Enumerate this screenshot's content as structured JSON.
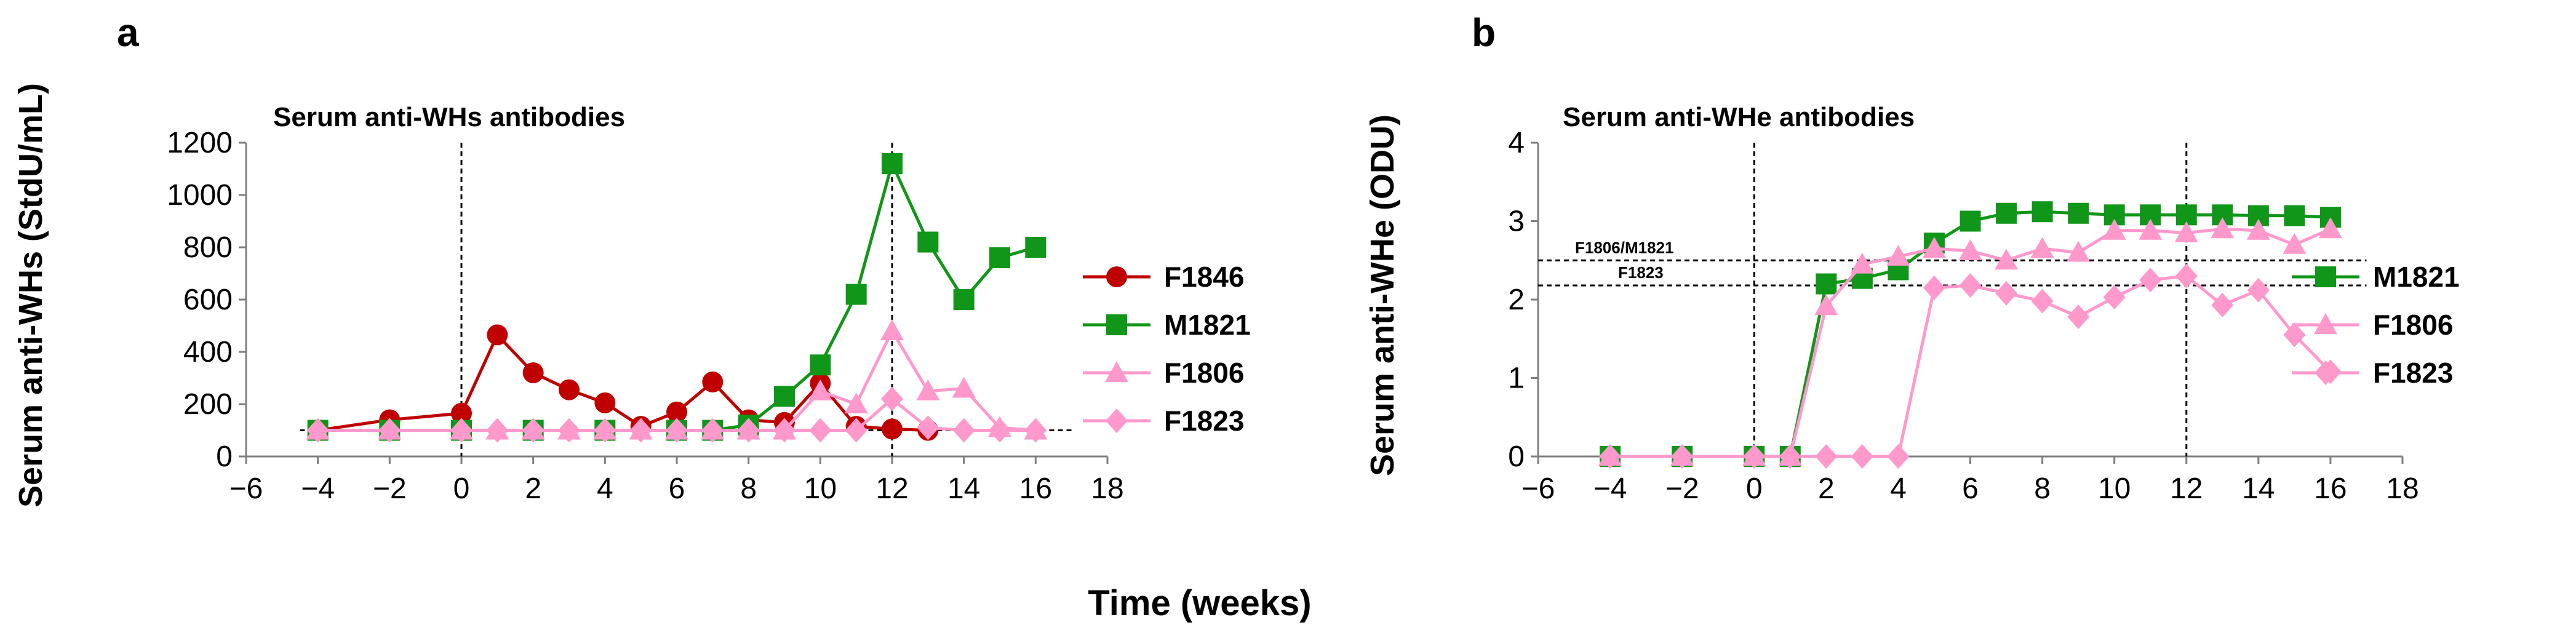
{
  "panels": [
    "a",
    "b"
  ],
  "shared_xlabel": "Time (weeks)",
  "chart_data": [
    {
      "type": "line",
      "panel": "a",
      "title": "Serum anti-WHs antibodies",
      "xlabel": "",
      "ylabel": "Serum anti-WHs (StdU/mL)",
      "xlim": [
        -6,
        18
      ],
      "ylim": [
        0,
        1200
      ],
      "xticks": [
        -6,
        -4,
        -2,
        0,
        2,
        4,
        6,
        8,
        10,
        12,
        14,
        16,
        18
      ],
      "xtick_labels": [
        "−6",
        "−4",
        "−2",
        "0",
        "2",
        "4",
        "6",
        "8",
        "10",
        "12",
        "14",
        "16",
        "18"
      ],
      "yticks": [
        0,
        200,
        400,
        600,
        800,
        1000,
        1200
      ],
      "ytick_labels": [
        "0",
        "200",
        "400",
        "600",
        "800",
        "1000",
        "1200"
      ],
      "grid": false,
      "legend_position": "right",
      "vlines": [
        0,
        12
      ],
      "hlines": [
        {
          "y": 100,
          "x_from": -4.5,
          "x_to": 17
        }
      ],
      "series": [
        {
          "name": "F1846",
          "color": "#c00000",
          "marker": "circle",
          "x": [
            -4,
            -2,
            0,
            1,
            2,
            3,
            4,
            5,
            6,
            7,
            8,
            9,
            10,
            11,
            12,
            13
          ],
          "y": [
            100,
            140,
            165,
            465,
            320,
            255,
            205,
            115,
            170,
            285,
            140,
            130,
            280,
            115,
            105,
            100
          ]
        },
        {
          "name": "M1821",
          "color": "#109618",
          "marker": "square",
          "x": [
            -4,
            -2,
            0,
            2,
            4,
            6,
            7,
            8,
            9,
            10,
            11,
            12,
            13,
            14,
            15,
            16
          ],
          "y": [
            100,
            100,
            100,
            100,
            100,
            100,
            100,
            120,
            230,
            350,
            620,
            1120,
            820,
            600,
            760,
            800
          ]
        },
        {
          "name": "F1806",
          "color": "#ff99cc",
          "marker": "triangle",
          "x": [
            -4,
            -2,
            0,
            1,
            2,
            3,
            4,
            5,
            6,
            7,
            8,
            9,
            10,
            11,
            12,
            13,
            14,
            15,
            16
          ],
          "y": [
            100,
            100,
            100,
            100,
            100,
            100,
            100,
            100,
            100,
            100,
            100,
            100,
            250,
            200,
            480,
            250,
            260,
            110,
            100
          ]
        },
        {
          "name": "F1823",
          "color": "#ff99cc",
          "marker": "diamond",
          "x": [
            -4,
            -2,
            0,
            1,
            2,
            3,
            4,
            5,
            6,
            7,
            8,
            9,
            10,
            11,
            12,
            13,
            14,
            15,
            16
          ],
          "y": [
            100,
            100,
            100,
            100,
            100,
            100,
            100,
            100,
            100,
            100,
            100,
            100,
            100,
            100,
            220,
            110,
            100,
            100,
            100
          ]
        }
      ]
    },
    {
      "type": "line",
      "panel": "b",
      "title": "Serum anti-WHe antibodies",
      "xlabel": "",
      "ylabel": "Serum anti-WHe (ODU)",
      "xlim": [
        -6,
        18
      ],
      "ylim": [
        0,
        4
      ],
      "xticks": [
        -6,
        -4,
        -2,
        0,
        2,
        4,
        6,
        8,
        10,
        12,
        14,
        16,
        18
      ],
      "xtick_labels": [
        "−6",
        "−4",
        "−2",
        "0",
        "2",
        "4",
        "6",
        "8",
        "10",
        "12",
        "14",
        "16",
        "18"
      ],
      "yticks": [
        0,
        1,
        2,
        3,
        4
      ],
      "ytick_labels": [
        "0",
        "1",
        "2",
        "3",
        "4"
      ],
      "grid": false,
      "legend_position": "right",
      "vlines": [
        0,
        12
      ],
      "hlines": [
        {
          "y": 2.5,
          "x_from": -6,
          "x_to": 17,
          "label": "F1806/M1821"
        },
        {
          "y": 2.18,
          "x_from": -6,
          "x_to": 17,
          "label": "F1823"
        }
      ],
      "series": [
        {
          "name": "M1821",
          "color": "#109618",
          "marker": "square",
          "x": [
            -4,
            -2,
            0,
            1,
            2,
            3,
            4,
            5,
            6,
            7,
            8,
            9,
            10,
            11,
            12,
            13,
            14,
            15,
            16
          ],
          "y": [
            0,
            0,
            0,
            0,
            2.2,
            2.27,
            2.38,
            2.72,
            3.0,
            3.1,
            3.12,
            3.1,
            3.08,
            3.08,
            3.08,
            3.08,
            3.07,
            3.07,
            3.05
          ]
        },
        {
          "name": "F1806",
          "color": "#ff99cc",
          "marker": "triangle",
          "x": [
            -4,
            -2,
            0,
            1,
            2,
            3,
            4,
            5,
            6,
            7,
            8,
            9,
            10,
            11,
            12,
            13,
            14,
            15,
            16
          ],
          "y": [
            0,
            0,
            0,
            0,
            1.92,
            2.45,
            2.55,
            2.65,
            2.62,
            2.5,
            2.65,
            2.6,
            2.88,
            2.88,
            2.85,
            2.9,
            2.88,
            2.7,
            2.9
          ]
        },
        {
          "name": "F1823",
          "color": "#ff99cc",
          "marker": "diamond",
          "x": [
            -4,
            -2,
            0,
            1,
            2,
            3,
            4,
            5,
            6,
            7,
            8,
            9,
            10,
            11,
            12,
            13,
            14,
            15,
            16
          ],
          "y": [
            0,
            0,
            0,
            0,
            0,
            0,
            0,
            2.15,
            2.18,
            2.08,
            1.98,
            1.78,
            2.03,
            2.25,
            2.3,
            1.93,
            2.12,
            1.55,
            1.08
          ]
        }
      ]
    }
  ]
}
